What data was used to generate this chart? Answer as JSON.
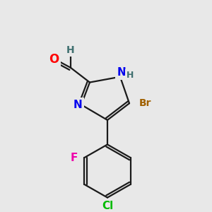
{
  "background_color": "#e8e8e8",
  "bond_color": "#1a1a1a",
  "atom_colors": {
    "O": "#ff0000",
    "N": "#0000ee",
    "Br": "#a06000",
    "F": "#ee00aa",
    "Cl": "#00bb00",
    "C": "#1a1a1a",
    "H": "#407070"
  },
  "font_size": 10,
  "fig_size": [
    3.0,
    3.0
  ],
  "dpi": 100
}
